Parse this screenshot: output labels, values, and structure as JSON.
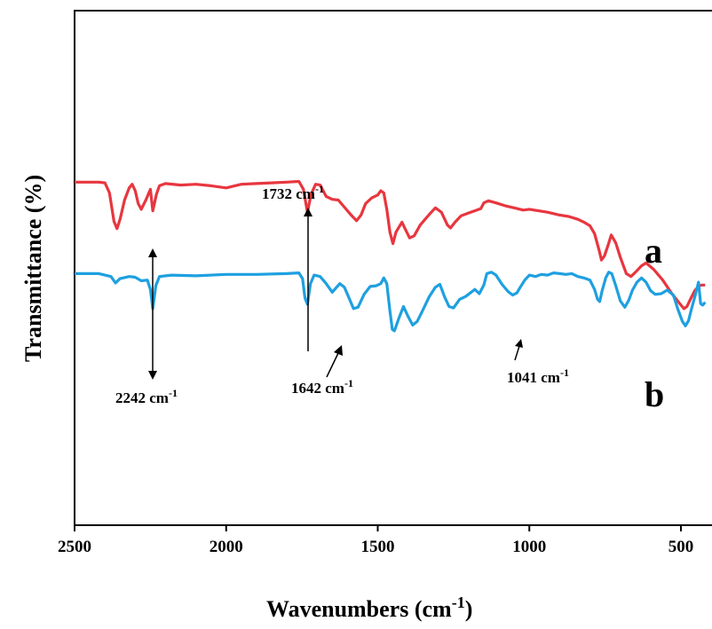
{
  "chart_data": {
    "type": "line",
    "xlabel": "Wavenumbers",
    "xlabel_unit": "cm",
    "xlabel_unit_exp": "-1",
    "ylabel": "Transmittance",
    "ylabel_unit": "(%)",
    "xlim": [
      2500,
      420
    ],
    "x_reversed": true,
    "x_ticks": [
      2500,
      2000,
      1500,
      1000,
      500
    ],
    "y_ticks_shown": false,
    "grid": false,
    "colors": {
      "a": "#e8363f",
      "b": "#1ea0e0",
      "axis": "#000000"
    },
    "series": [
      {
        "name": "a",
        "points": [
          [
            2500,
            68.0
          ],
          [
            2420,
            68.0
          ],
          [
            2400,
            67.9
          ],
          [
            2385,
            66.5
          ],
          [
            2370,
            62.5
          ],
          [
            2360,
            61.5
          ],
          [
            2350,
            62.8
          ],
          [
            2335,
            65.5
          ],
          [
            2320,
            67.2
          ],
          [
            2310,
            67.7
          ],
          [
            2300,
            66.8
          ],
          [
            2290,
            65.0
          ],
          [
            2280,
            64.2
          ],
          [
            2265,
            65.5
          ],
          [
            2250,
            67.0
          ],
          [
            2242,
            64.0
          ],
          [
            2230,
            66.3
          ],
          [
            2220,
            67.5
          ],
          [
            2200,
            67.8
          ],
          [
            2150,
            67.6
          ],
          [
            2100,
            67.7
          ],
          [
            2050,
            67.5
          ],
          [
            2000,
            67.2
          ],
          [
            1950,
            67.7
          ],
          [
            1900,
            67.8
          ],
          [
            1850,
            67.9
          ],
          [
            1800,
            68.0
          ],
          [
            1760,
            68.1
          ],
          [
            1745,
            67.0
          ],
          [
            1732,
            63.8
          ],
          [
            1720,
            66.3
          ],
          [
            1705,
            67.7
          ],
          [
            1690,
            67.6
          ],
          [
            1670,
            66.0
          ],
          [
            1650,
            65.6
          ],
          [
            1630,
            65.5
          ],
          [
            1610,
            64.5
          ],
          [
            1590,
            63.5
          ],
          [
            1570,
            62.6
          ],
          [
            1555,
            63.4
          ],
          [
            1540,
            65.0
          ],
          [
            1520,
            65.8
          ],
          [
            1500,
            66.2
          ],
          [
            1490,
            66.8
          ],
          [
            1480,
            66.5
          ],
          [
            1470,
            64.2
          ],
          [
            1460,
            61.0
          ],
          [
            1450,
            59.4
          ],
          [
            1440,
            61.0
          ],
          [
            1420,
            62.4
          ],
          [
            1410,
            61.5
          ],
          [
            1395,
            60.2
          ],
          [
            1380,
            60.5
          ],
          [
            1360,
            62.0
          ],
          [
            1330,
            63.5
          ],
          [
            1310,
            64.4
          ],
          [
            1290,
            63.8
          ],
          [
            1270,
            62.0
          ],
          [
            1260,
            61.6
          ],
          [
            1245,
            62.4
          ],
          [
            1225,
            63.3
          ],
          [
            1200,
            63.7
          ],
          [
            1180,
            64.0
          ],
          [
            1160,
            64.3
          ],
          [
            1150,
            65.1
          ],
          [
            1135,
            65.4
          ],
          [
            1110,
            65.1
          ],
          [
            1080,
            64.7
          ],
          [
            1050,
            64.4
          ],
          [
            1020,
            64.1
          ],
          [
            1000,
            64.2
          ],
          [
            970,
            64.0
          ],
          [
            940,
            63.8
          ],
          [
            900,
            63.4
          ],
          [
            870,
            63.2
          ],
          [
            840,
            62.8
          ],
          [
            820,
            62.4
          ],
          [
            800,
            61.9
          ],
          [
            785,
            60.8
          ],
          [
            770,
            58.5
          ],
          [
            762,
            57.1
          ],
          [
            752,
            57.7
          ],
          [
            740,
            59.2
          ],
          [
            730,
            60.6
          ],
          [
            715,
            59.5
          ],
          [
            700,
            57.5
          ],
          [
            680,
            55.2
          ],
          [
            665,
            54.8
          ],
          [
            650,
            55.4
          ],
          [
            630,
            56.3
          ],
          [
            615,
            56.7
          ],
          [
            590,
            55.8
          ],
          [
            560,
            54.3
          ],
          [
            530,
            52.4
          ],
          [
            500,
            50.8
          ],
          [
            490,
            50.3
          ],
          [
            480,
            50.6
          ],
          [
            470,
            51.5
          ],
          [
            455,
            52.8
          ],
          [
            440,
            53.5
          ],
          [
            430,
            53.6
          ],
          [
            420,
            53.6
          ]
        ]
      },
      {
        "name": "b",
        "points": [
          [
            2500,
            55.2
          ],
          [
            2420,
            55.2
          ],
          [
            2380,
            54.8
          ],
          [
            2365,
            53.9
          ],
          [
            2350,
            54.5
          ],
          [
            2320,
            54.8
          ],
          [
            2300,
            54.7
          ],
          [
            2280,
            54.2
          ],
          [
            2260,
            54.3
          ],
          [
            2250,
            53.0
          ],
          [
            2242,
            50.3
          ],
          [
            2232,
            53.5
          ],
          [
            2220,
            54.8
          ],
          [
            2180,
            55.0
          ],
          [
            2100,
            54.9
          ],
          [
            2000,
            55.1
          ],
          [
            1900,
            55.1
          ],
          [
            1800,
            55.2
          ],
          [
            1760,
            55.3
          ],
          [
            1748,
            54.5
          ],
          [
            1740,
            51.8
          ],
          [
            1732,
            50.9
          ],
          [
            1722,
            53.8
          ],
          [
            1710,
            55.0
          ],
          [
            1690,
            54.8
          ],
          [
            1670,
            53.8
          ],
          [
            1650,
            52.6
          ],
          [
            1642,
            53.0
          ],
          [
            1625,
            53.8
          ],
          [
            1610,
            53.3
          ],
          [
            1595,
            51.8
          ],
          [
            1580,
            50.3
          ],
          [
            1565,
            50.5
          ],
          [
            1545,
            52.3
          ],
          [
            1525,
            53.4
          ],
          [
            1505,
            53.5
          ],
          [
            1490,
            53.8
          ],
          [
            1480,
            54.6
          ],
          [
            1470,
            53.8
          ],
          [
            1460,
            50.0
          ],
          [
            1452,
            47.4
          ],
          [
            1445,
            47.2
          ],
          [
            1430,
            49.0
          ],
          [
            1415,
            50.6
          ],
          [
            1400,
            49.2
          ],
          [
            1385,
            48.0
          ],
          [
            1370,
            48.5
          ],
          [
            1350,
            50.2
          ],
          [
            1330,
            52.0
          ],
          [
            1310,
            53.3
          ],
          [
            1295,
            53.7
          ],
          [
            1280,
            52.0
          ],
          [
            1265,
            50.6
          ],
          [
            1250,
            50.4
          ],
          [
            1230,
            51.6
          ],
          [
            1210,
            52.0
          ],
          [
            1195,
            52.5
          ],
          [
            1180,
            53.0
          ],
          [
            1165,
            52.4
          ],
          [
            1150,
            53.6
          ],
          [
            1140,
            55.2
          ],
          [
            1125,
            55.4
          ],
          [
            1110,
            55.0
          ],
          [
            1090,
            53.7
          ],
          [
            1070,
            52.7
          ],
          [
            1055,
            52.2
          ],
          [
            1041,
            52.5
          ],
          [
            1030,
            53.3
          ],
          [
            1015,
            54.3
          ],
          [
            1000,
            55.0
          ],
          [
            980,
            54.8
          ],
          [
            960,
            55.1
          ],
          [
            940,
            55.0
          ],
          [
            920,
            55.3
          ],
          [
            900,
            55.2
          ],
          [
            880,
            55.1
          ],
          [
            860,
            55.2
          ],
          [
            840,
            54.8
          ],
          [
            820,
            54.6
          ],
          [
            800,
            54.3
          ],
          [
            785,
            53.0
          ],
          [
            775,
            51.6
          ],
          [
            768,
            51.3
          ],
          [
            760,
            52.8
          ],
          [
            748,
            54.6
          ],
          [
            738,
            55.4
          ],
          [
            728,
            55.2
          ],
          [
            715,
            53.5
          ],
          [
            700,
            51.4
          ],
          [
            685,
            50.5
          ],
          [
            672,
            51.5
          ],
          [
            660,
            52.9
          ],
          [
            645,
            54.0
          ],
          [
            630,
            54.6
          ],
          [
            615,
            54.0
          ],
          [
            600,
            52.8
          ],
          [
            585,
            52.3
          ],
          [
            565,
            52.4
          ],
          [
            545,
            52.9
          ],
          [
            525,
            52.2
          ],
          [
            510,
            50.2
          ],
          [
            495,
            48.5
          ],
          [
            485,
            47.9
          ],
          [
            475,
            48.6
          ],
          [
            465,
            50.3
          ],
          [
            452,
            52.3
          ],
          [
            442,
            54.0
          ],
          [
            435,
            51.0
          ],
          [
            428,
            50.8
          ],
          [
            420,
            51.2
          ]
        ]
      }
    ],
    "y_domain": [
      20,
      92
    ],
    "annotations": [
      {
        "id": "a2242",
        "text": "2242 cm",
        "sup": "-1",
        "x": 2242
      },
      {
        "id": "a1732",
        "text": "1732 cm",
        "sup": "-1",
        "x": 1732
      },
      {
        "id": "a1642",
        "text": "1642 cm",
        "sup": "-1",
        "x": 1642
      },
      {
        "id": "a1041",
        "text": "1041 cm",
        "sup": "-1",
        "x": 1041
      }
    ],
    "series_labels": {
      "a": "a",
      "b": "b"
    }
  }
}
